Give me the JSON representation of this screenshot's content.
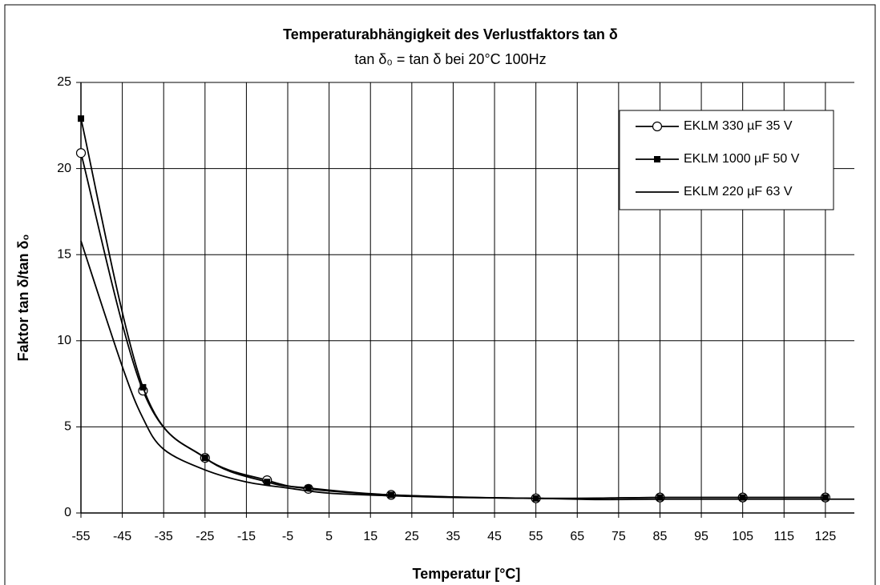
{
  "chart_data": {
    "type": "line",
    "title": "Temperaturabhängigkeit des Verlustfaktors tan δ",
    "subtitle": "tan δ₀ = tan δ bei 20°C 100Hz",
    "x_label": "Temperatur [°C]",
    "y_label": "Faktor tan δ/tan δ₀",
    "xlim": [
      -55,
      132
    ],
    "ylim": [
      0,
      25
    ],
    "xticks": [
      -55,
      -45,
      -35,
      -25,
      -15,
      -5,
      5,
      15,
      25,
      35,
      45,
      55,
      65,
      75,
      85,
      95,
      105,
      115,
      125
    ],
    "yticks": [
      0,
      5,
      10,
      15,
      20,
      25
    ],
    "grid": true,
    "legend": "upper right",
    "series": [
      {
        "name": "EKLM 330 µF 35 V",
        "color": "#000000",
        "marker": "circle",
        "x": [
          -55,
          -40,
          -25,
          -10,
          0,
          20,
          55,
          85,
          105,
          125
        ],
        "values": [
          20.9,
          7.1,
          3.2,
          1.9,
          1.4,
          1.05,
          0.85,
          0.9,
          0.9,
          0.9
        ]
      },
      {
        "name": "EKLM 1000 µF 50 V",
        "color": "#000000",
        "marker": "square",
        "x": [
          -55,
          -40,
          -25,
          -10,
          0,
          20,
          55,
          85,
          105,
          125
        ],
        "values": [
          22.9,
          7.3,
          3.2,
          1.8,
          1.45,
          1.05,
          0.85,
          0.9,
          0.9,
          0.9
        ]
      },
      {
        "name": "EKLM 220 µF 63 V",
        "color": "#000000",
        "marker": "none",
        "x": [
          -55,
          -45,
          -40,
          -35,
          -25,
          -15,
          -5,
          5,
          20,
          35,
          55,
          70,
          85,
          105,
          132
        ],
        "values": [
          15.8,
          8.5,
          5.5,
          3.7,
          2.5,
          1.8,
          1.45,
          1.15,
          1.0,
          0.9,
          0.85,
          0.78,
          0.8,
          0.8,
          0.8
        ]
      }
    ]
  }
}
